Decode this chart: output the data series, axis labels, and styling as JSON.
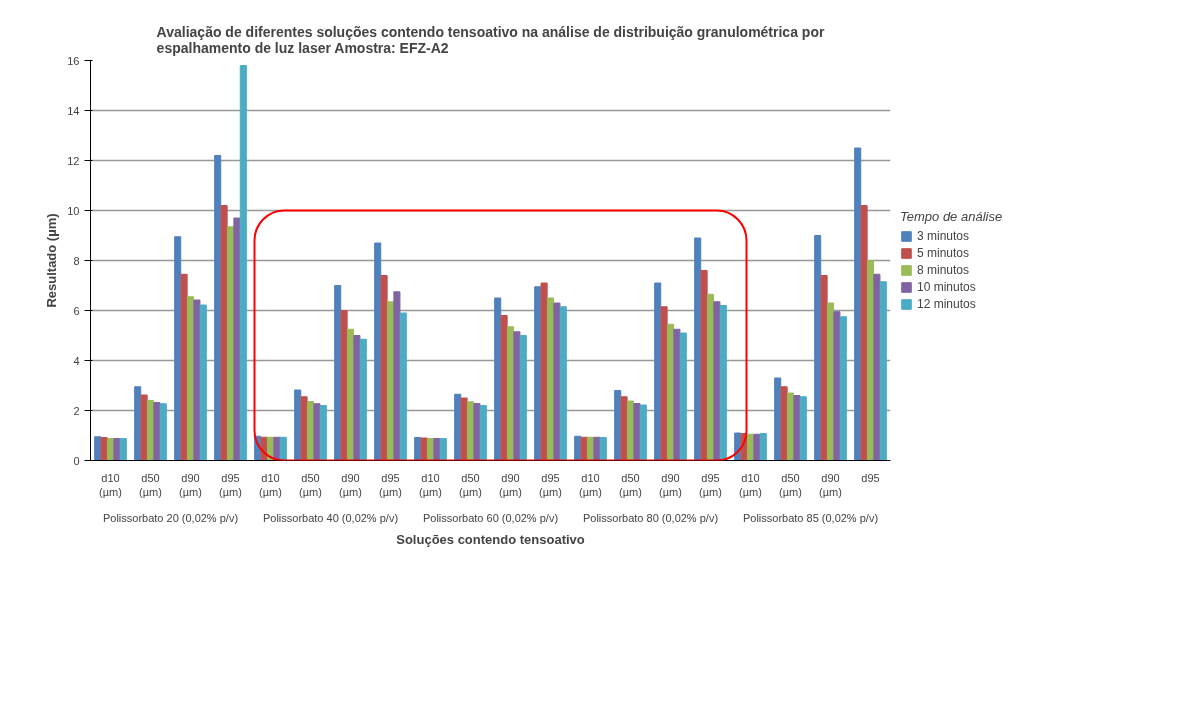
{
  "chart_data": {
    "type": "bar",
    "title": "Avaliação de diferentes soluções contendo tensoativo na análise de distribuição granulométrica por espalhamento de luz laser  Amostra: EFZ-A2",
    "xlabel": "Soluções contendo tensoativo",
    "ylabel": "Resultado (µm)",
    "legend_title": "Tempo de análise",
    "categories": [
      "d10 (µm)",
      "d50 (µm)",
      "d90 (µm)",
      "d95 (µm)",
      "d10 (µm)",
      "d50 (µm)",
      "d90 (µm)",
      "d95 (µm)",
      "d10 (µm)",
      "d50 (µm)",
      "d90 (µm)",
      "d95 (µm)",
      "d10 (µm)",
      "d50 (µm)",
      "d90 (µm)",
      "d95 (µm)",
      "d10 (µm)",
      "d50 (µm)",
      "d90 (µm)",
      "d95"
    ],
    "series": [
      {
        "name": "3 minutos",
        "color": "#4f81bd",
        "values": [
          0.95,
          2.95,
          8.95,
          12.2,
          0.97,
          2.82,
          7.0,
          8.7,
          0.92,
          2.65,
          6.5,
          6.95,
          0.97,
          2.8,
          7.1,
          8.9,
          1.1,
          3.3,
          9.0,
          12.5
        ]
      },
      {
        "name": "5 minutos",
        "color": "#c0504d",
        "values": [
          0.92,
          2.62,
          7.45,
          10.2,
          0.93,
          2.55,
          6.0,
          7.4,
          0.9,
          2.5,
          5.8,
          7.1,
          0.93,
          2.55,
          6.15,
          7.6,
          1.08,
          2.95,
          7.4,
          10.2
        ]
      },
      {
        "name": "8 minutos",
        "color": "#9bbb59",
        "values": [
          0.88,
          2.4,
          6.55,
          9.35,
          0.93,
          2.36,
          5.25,
          6.35,
          0.88,
          2.35,
          5.35,
          6.5,
          0.93,
          2.38,
          5.45,
          6.65,
          1.05,
          2.7,
          6.3,
          8.0
        ]
      },
      {
        "name": "10 minutos",
        "color": "#8064a2",
        "values": [
          0.88,
          2.32,
          6.42,
          9.7,
          0.93,
          2.27,
          5.0,
          6.75,
          0.88,
          2.28,
          5.15,
          6.3,
          0.93,
          2.28,
          5.25,
          6.35,
          1.05,
          2.6,
          5.95,
          7.45
        ]
      },
      {
        "name": "12 minutos",
        "color": "#4bacc6",
        "values": [
          0.88,
          2.27,
          6.22,
          15.8,
          0.93,
          2.2,
          4.85,
          5.9,
          0.88,
          2.2,
          5.0,
          6.15,
          0.92,
          2.22,
          5.1,
          6.2,
          1.08,
          2.55,
          5.75,
          7.15
        ]
      }
    ],
    "annotations": [
      "Polissorbato 20 (0,02% p/v)",
      "Polissorbato 40 (0,02% p/v)",
      "Polissorbato 60 (0,02% p/v)",
      "Polissorbato 80 (0,02% p/v)",
      "Polissorbato 85 (0,02% p/v)"
    ],
    "ylim": [
      0,
      16
    ],
    "yticks": [
      0,
      2,
      4,
      6,
      8,
      10,
      12,
      14,
      16
    ],
    "grid": "y",
    "legend": "right"
  }
}
